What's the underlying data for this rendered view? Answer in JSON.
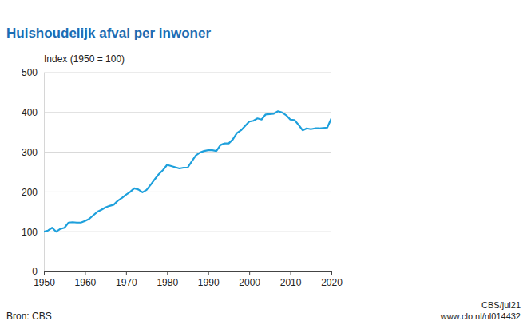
{
  "chart_data": {
    "type": "line",
    "title": "Huishoudelijk afval per inwoner",
    "ylabel": "Index (1950 = 100)",
    "source": "Bron: CBS",
    "annotations": [
      "CBS/jul21",
      "www.clo.nl/nl014432"
    ],
    "color": "#1ea0dc",
    "grid": true,
    "x": [
      1950,
      1951,
      1952,
      1953,
      1954,
      1955,
      1956,
      1957,
      1958,
      1959,
      1960,
      1961,
      1962,
      1963,
      1964,
      1965,
      1966,
      1967,
      1968,
      1969,
      1970,
      1971,
      1972,
      1973,
      1974,
      1975,
      1976,
      1977,
      1978,
      1979,
      1980,
      1981,
      1982,
      1983,
      1984,
      1985,
      1986,
      1987,
      1988,
      1989,
      1990,
      1991,
      1992,
      1993,
      1994,
      1995,
      1996,
      1997,
      1998,
      1999,
      2000,
      2001,
      2002,
      2003,
      2004,
      2005,
      2006,
      2007,
      2008,
      2009,
      2010,
      2011,
      2012,
      2013,
      2014,
      2015,
      2016,
      2017,
      2018,
      2019,
      2020
    ],
    "values": [
      100,
      103,
      110,
      100,
      107,
      110,
      123,
      124,
      123,
      123,
      127,
      132,
      141,
      150,
      155,
      161,
      165,
      168,
      178,
      185,
      193,
      200,
      209,
      206,
      199,
      205,
      218,
      232,
      245,
      255,
      268,
      265,
      262,
      259,
      261,
      261,
      277,
      292,
      299,
      303,
      305,
      305,
      303,
      318,
      322,
      322,
      332,
      348,
      355,
      366,
      377,
      379,
      385,
      382,
      395,
      396,
      397,
      403,
      400,
      393,
      382,
      381,
      369,
      355,
      360,
      358,
      360,
      360,
      361,
      362,
      385
    ],
    "xlim": [
      1950,
      2020
    ],
    "xticks": [
      1950,
      1960,
      1970,
      1980,
      1990,
      2000,
      2010,
      2020
    ],
    "ylim": [
      0,
      500
    ],
    "yticks": [
      0,
      100,
      200,
      300,
      400,
      500
    ]
  }
}
